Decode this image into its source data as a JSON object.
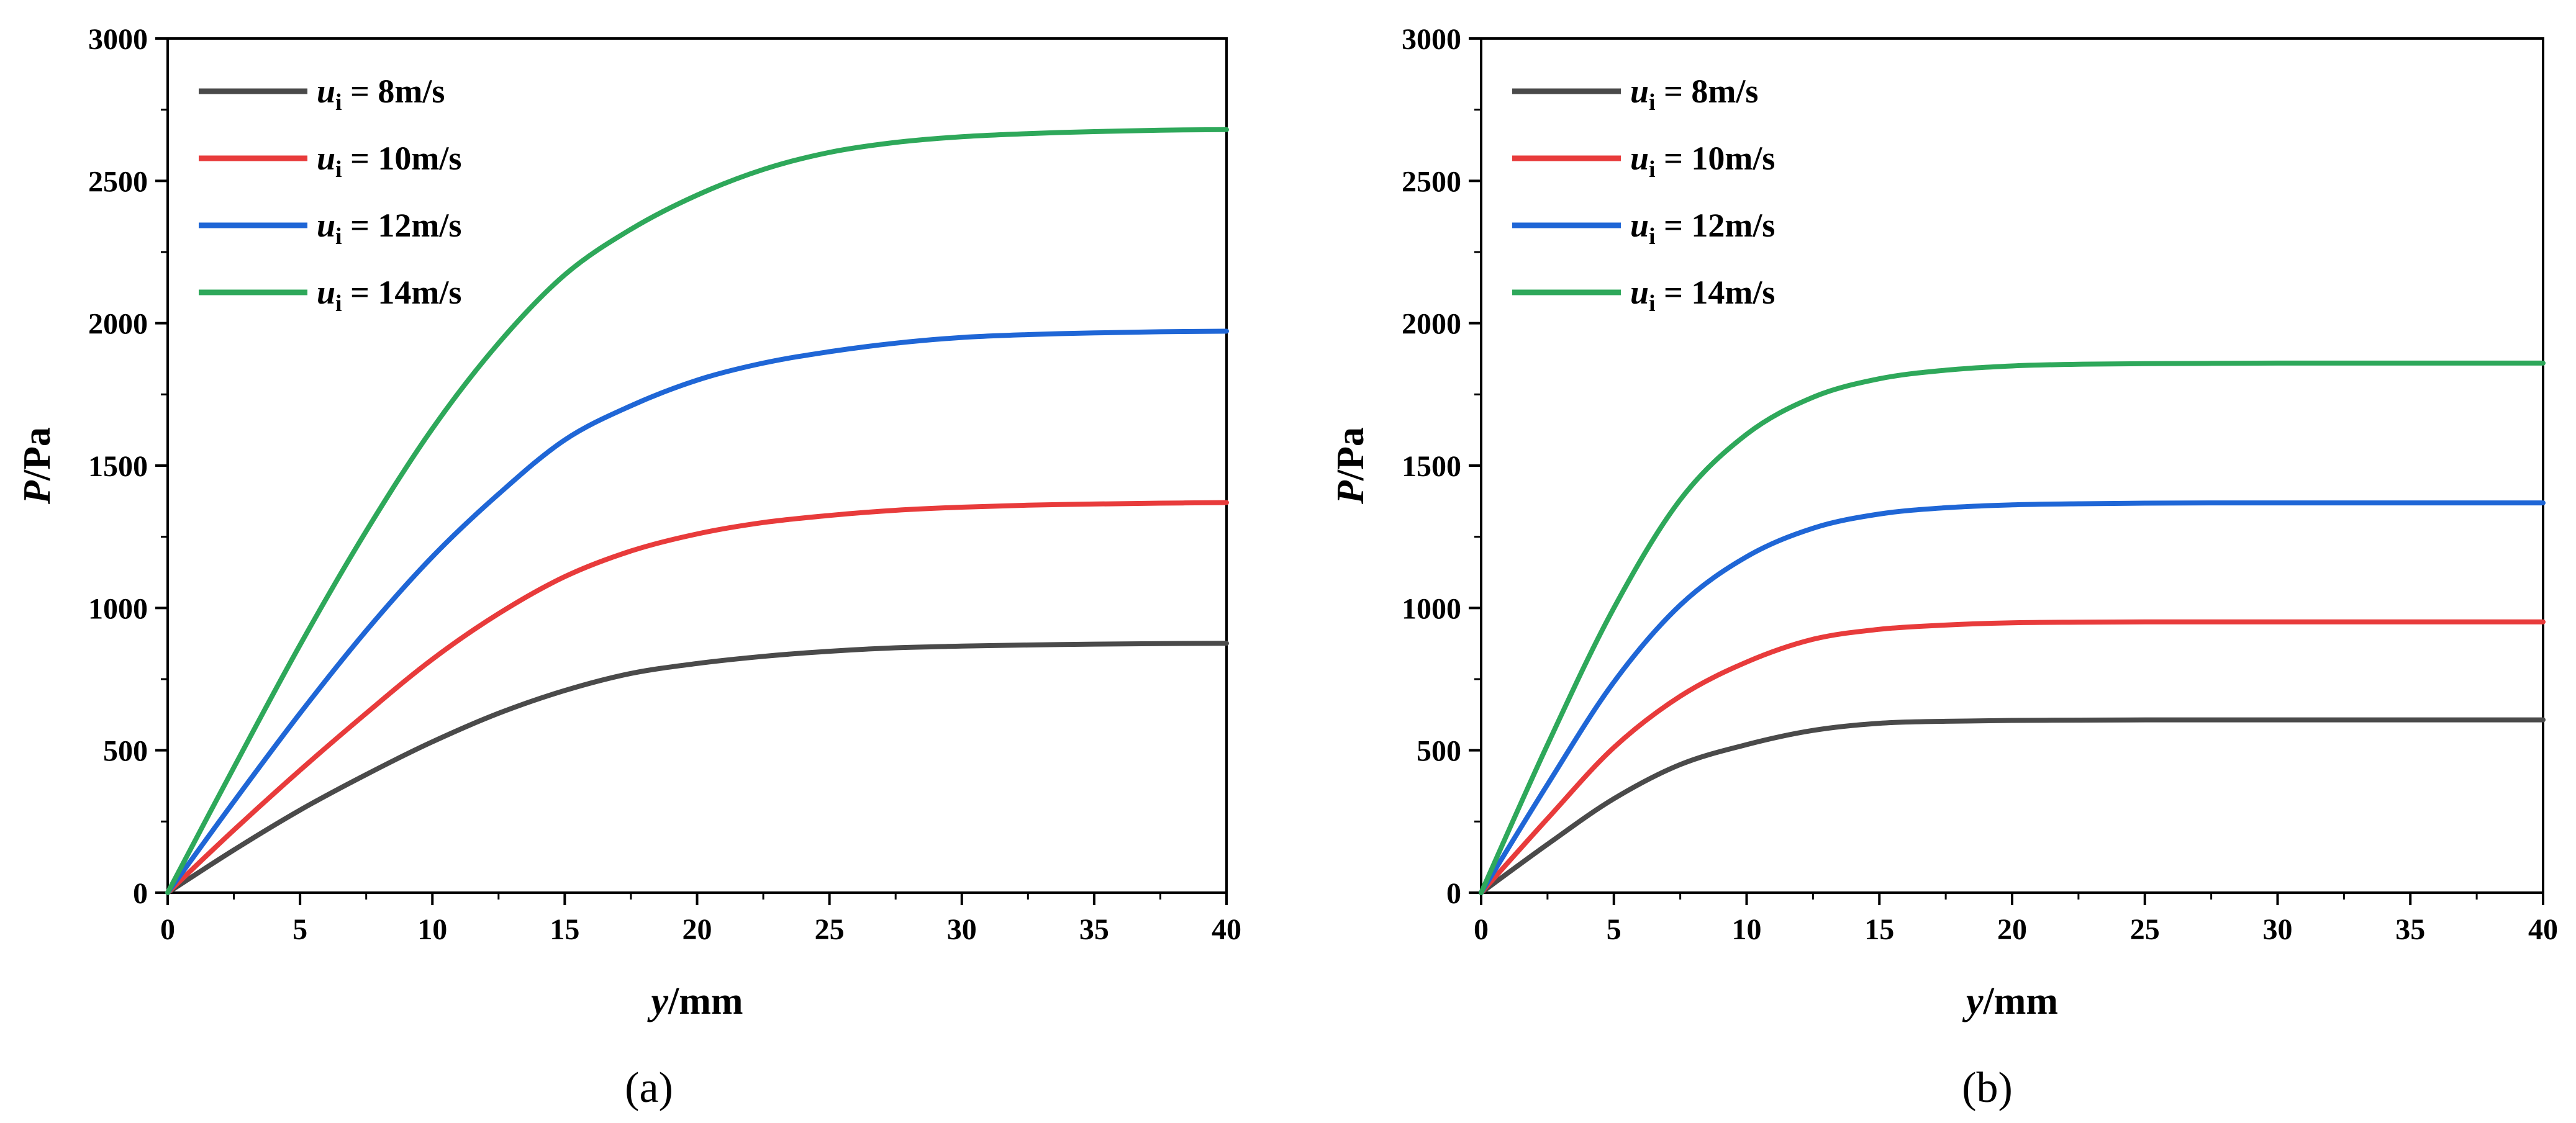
{
  "chart_data": [
    {
      "type": "line",
      "panel_label": "(a)",
      "xlabel_var": "y",
      "xlabel_unit": "/mm",
      "ylabel_var": "P",
      "ylabel_unit": "/Pa",
      "xlim": [
        0,
        40
      ],
      "ylim": [
        0,
        3000
      ],
      "xticks": [
        0,
        5,
        10,
        15,
        20,
        25,
        30,
        35,
        40
      ],
      "yticks": [
        0,
        500,
        1000,
        1500,
        2000,
        2500,
        3000
      ],
      "legend_position": "top-left",
      "x": [
        0,
        2.5,
        5,
        7.5,
        10,
        12.5,
        15,
        17.5,
        20,
        22.5,
        25,
        27.5,
        30,
        32.5,
        35,
        37.5,
        40
      ],
      "series": [
        {
          "name": "8m/s",
          "var": "u",
          "sub": "i",
          "eq": " = ",
          "color": "#4a4a4a",
          "values": [
            0,
            150,
            290,
            415,
            530,
            630,
            710,
            770,
            805,
            830,
            848,
            860,
            866,
            870,
            873,
            875,
            876
          ]
        },
        {
          "name": "10m/s",
          "var": "u",
          "sub": "i",
          "eq": " = ",
          "color": "#e83b3b",
          "values": [
            0,
            220,
            430,
            630,
            820,
            980,
            1110,
            1200,
            1260,
            1300,
            1325,
            1343,
            1354,
            1361,
            1365,
            1368,
            1370
          ]
        },
        {
          "name": "12m/s",
          "var": "u",
          "sub": "i",
          "eq": " = ",
          "color": "#1f66d6",
          "values": [
            0,
            320,
            630,
            920,
            1180,
            1400,
            1590,
            1710,
            1800,
            1860,
            1900,
            1930,
            1950,
            1960,
            1966,
            1970,
            1972
          ]
        },
        {
          "name": "14m/s",
          "var": "u",
          "sub": "i",
          "eq": " = ",
          "color": "#2ea85a",
          "values": [
            0,
            440,
            870,
            1270,
            1630,
            1930,
            2170,
            2330,
            2450,
            2540,
            2600,
            2635,
            2655,
            2666,
            2673,
            2678,
            2680
          ]
        }
      ]
    },
    {
      "type": "line",
      "panel_label": "(b)",
      "xlabel_var": "y",
      "xlabel_unit": "/mm",
      "ylabel_var": "P",
      "ylabel_unit": "/Pa",
      "xlim": [
        0,
        40
      ],
      "ylim": [
        0,
        3000
      ],
      "xticks": [
        0,
        5,
        10,
        15,
        20,
        25,
        30,
        35,
        40
      ],
      "yticks": [
        0,
        500,
        1000,
        1500,
        2000,
        2500,
        3000
      ],
      "legend_position": "top-left",
      "x": [
        0,
        2.5,
        5,
        7.5,
        10,
        12.5,
        15,
        17.5,
        20,
        22.5,
        25,
        27.5,
        30,
        32.5,
        35,
        37.5,
        40
      ],
      "series": [
        {
          "name": "8m/s",
          "var": "u",
          "sub": "i",
          "eq": " = ",
          "color": "#4a4a4a",
          "values": [
            0,
            170,
            330,
            450,
            520,
            570,
            595,
            602,
            605,
            606,
            607,
            607,
            607,
            607,
            607,
            607,
            607
          ]
        },
        {
          "name": "10m/s",
          "var": "u",
          "sub": "i",
          "eq": " = ",
          "color": "#e83b3b",
          "values": [
            0,
            260,
            510,
            690,
            810,
            890,
            925,
            940,
            948,
            950,
            951,
            951,
            951,
            951,
            951,
            951,
            951
          ]
        },
        {
          "name": "12m/s",
          "var": "u",
          "sub": "i",
          "eq": " = ",
          "color": "#1f66d6",
          "values": [
            0,
            380,
            740,
            1010,
            1180,
            1280,
            1330,
            1352,
            1362,
            1366,
            1368,
            1369,
            1369,
            1369,
            1369,
            1369,
            1369
          ]
        },
        {
          "name": "14m/s",
          "var": "u",
          "sub": "i",
          "eq": " = ",
          "color": "#2ea85a",
          "values": [
            0,
            520,
            1000,
            1380,
            1610,
            1740,
            1805,
            1835,
            1850,
            1856,
            1858,
            1859,
            1860,
            1860,
            1860,
            1860,
            1860
          ]
        }
      ]
    }
  ]
}
